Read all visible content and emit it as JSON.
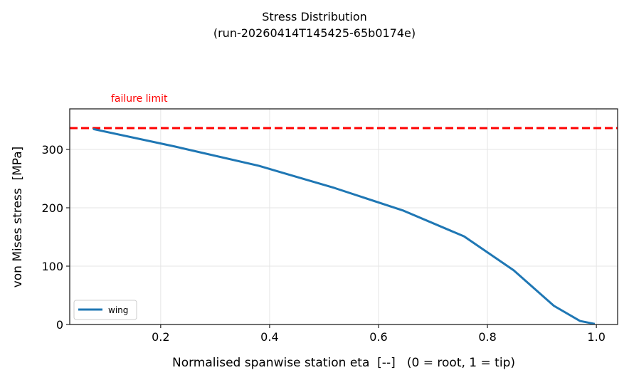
{
  "chart_data": {
    "type": "line",
    "title": "Stress Distribution",
    "subtitle": "(run-20260414T145425-65b0174e)",
    "xlabel": "Normalised spanwise station eta  [--]   (0 = root, 1 = tip)",
    "ylabel": "von Mises stress  [MPa]",
    "xlim": [
      0.033,
      1.039
    ],
    "ylim": [
      0,
      369.5
    ],
    "xticks": [
      0.2,
      0.4,
      0.6,
      0.8,
      1.0
    ],
    "xtick_labels": [
      "0.2",
      "0.4",
      "0.6",
      "0.8",
      "1.0"
    ],
    "yticks": [
      0,
      100,
      200,
      300
    ],
    "ytick_labels": [
      "0",
      "100",
      "200",
      "300"
    ],
    "grid": true,
    "legend_placement": "lower-left",
    "series": [
      {
        "name": "wing",
        "color": "#1f77b4",
        "x": [
          0.076,
          0.226,
          0.38,
          0.519,
          0.646,
          0.757,
          0.848,
          0.922,
          0.97,
          0.997
        ],
        "y": [
          335,
          305,
          272,
          234,
          195,
          151,
          93,
          32,
          6,
          1
        ]
      }
    ],
    "reference_line": {
      "label": "failure limit",
      "y": 336.6,
      "color": "#ff0000",
      "style": "dashed"
    }
  }
}
